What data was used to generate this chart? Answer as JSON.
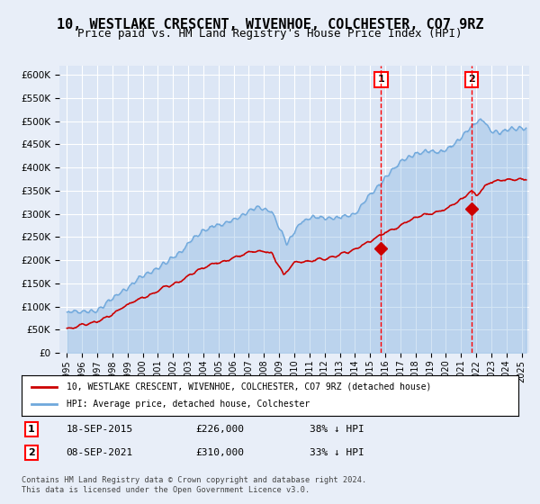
{
  "title": "10, WESTLAKE CRESCENT, WIVENHOE, COLCHESTER, CO7 9RZ",
  "subtitle": "Price paid vs. HM Land Registry's House Price Index (HPI)",
  "title_fontsize": 11,
  "subtitle_fontsize": 9,
  "bg_color": "#e8eef8",
  "plot_bg_color": "#dce6f5",
  "grid_color": "#ffffff",
  "hpi_color": "#6fa8dc",
  "price_color": "#cc0000",
  "sale1_date_num": 2015.72,
  "sale1_price": 226000,
  "sale2_date_num": 2021.69,
  "sale2_price": 310000,
  "vline_color": "#ff0000",
  "sale1_label": "18-SEP-2015",
  "sale1_amount": "£226,000",
  "sale1_pct": "38% ↓ HPI",
  "sale2_label": "08-SEP-2021",
  "sale2_amount": "£310,000",
  "sale2_pct": "33% ↓ HPI",
  "legend_line1": "10, WESTLAKE CRESCENT, WIVENHOE, COLCHESTER, CO7 9RZ (detached house)",
  "legend_line2": "HPI: Average price, detached house, Colchester",
  "footer": "Contains HM Land Registry data © Crown copyright and database right 2024.\nThis data is licensed under the Open Government Licence v3.0.",
  "ylim": [
    0,
    620000
  ],
  "xlim_start": 1994.5,
  "xlim_end": 2025.5
}
